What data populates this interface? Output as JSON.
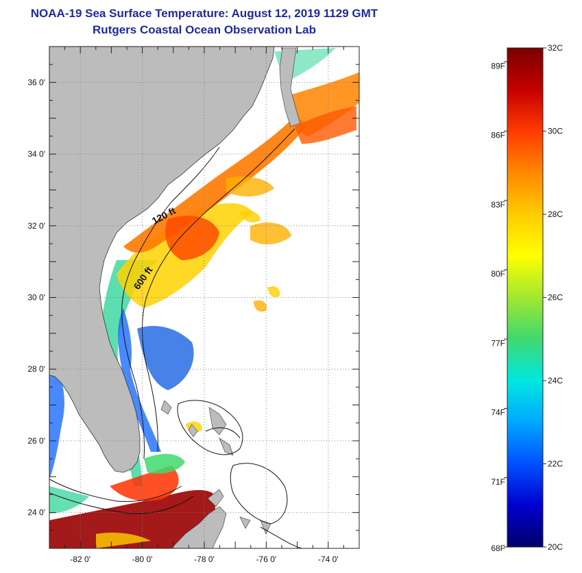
{
  "header": {
    "title": "NOAA-19 Sea Surface Temperature:  August 12, 2019 1129 GMT",
    "subtitle": "Rutgers Coastal Ocean Observation Lab"
  },
  "map": {
    "lat_labels": [
      {
        "value": 36,
        "label": "36 0'"
      },
      {
        "value": 34,
        "label": "34 0'"
      },
      {
        "value": 32,
        "label": "32 0'"
      },
      {
        "value": 30,
        "label": "30 0'"
      },
      {
        "value": 28,
        "label": "28 0'"
      },
      {
        "value": 26,
        "label": "26 0'"
      },
      {
        "value": 24,
        "label": "24 0'"
      }
    ],
    "lon_labels": [
      {
        "value": -82,
        "label": "-82 0'"
      },
      {
        "value": -80,
        "label": "-80 0'"
      },
      {
        "value": -78,
        "label": "-78 0'"
      },
      {
        "value": -76,
        "label": "-76 0'"
      },
      {
        "value": -74,
        "label": "-74 0'"
      }
    ],
    "lon_range": [
      -83,
      -73
    ],
    "lat_range": [
      23,
      37
    ],
    "contours": [
      {
        "label": "120 ft"
      },
      {
        "label": "600 ft"
      }
    ],
    "colors": {
      "land": "#bcbcbc",
      "ocean_nodata": "#ffffff",
      "grid": "#808080"
    }
  },
  "colorbar": {
    "range_c": [
      20,
      32
    ],
    "celsius_ticks": [
      {
        "value": 32,
        "label": "32C"
      },
      {
        "value": 30,
        "label": "30C"
      },
      {
        "value": 28,
        "label": "28C"
      },
      {
        "value": 26,
        "label": "26C"
      },
      {
        "value": 24,
        "label": "24C"
      },
      {
        "value": 22,
        "label": "22C"
      },
      {
        "value": 20,
        "label": "20C"
      }
    ],
    "fahrenheit_ticks": [
      {
        "value": 89,
        "label": "89F"
      },
      {
        "value": 86,
        "label": "86F"
      },
      {
        "value": 83,
        "label": "83F"
      },
      {
        "value": 80,
        "label": "80F"
      },
      {
        "value": 77,
        "label": "77F"
      },
      {
        "value": 74,
        "label": "74F"
      },
      {
        "value": 71,
        "label": "71F"
      },
      {
        "value": 68,
        "label": "68F"
      }
    ],
    "gradient_stops": [
      "#7a0000",
      "#c40000",
      "#ff3a00",
      "#ff8800",
      "#ffcc00",
      "#ffff00",
      "#a0e830",
      "#40d870",
      "#00e8e0",
      "#00a8ff",
      "#0050ff",
      "#0000d0",
      "#00006a"
    ]
  }
}
